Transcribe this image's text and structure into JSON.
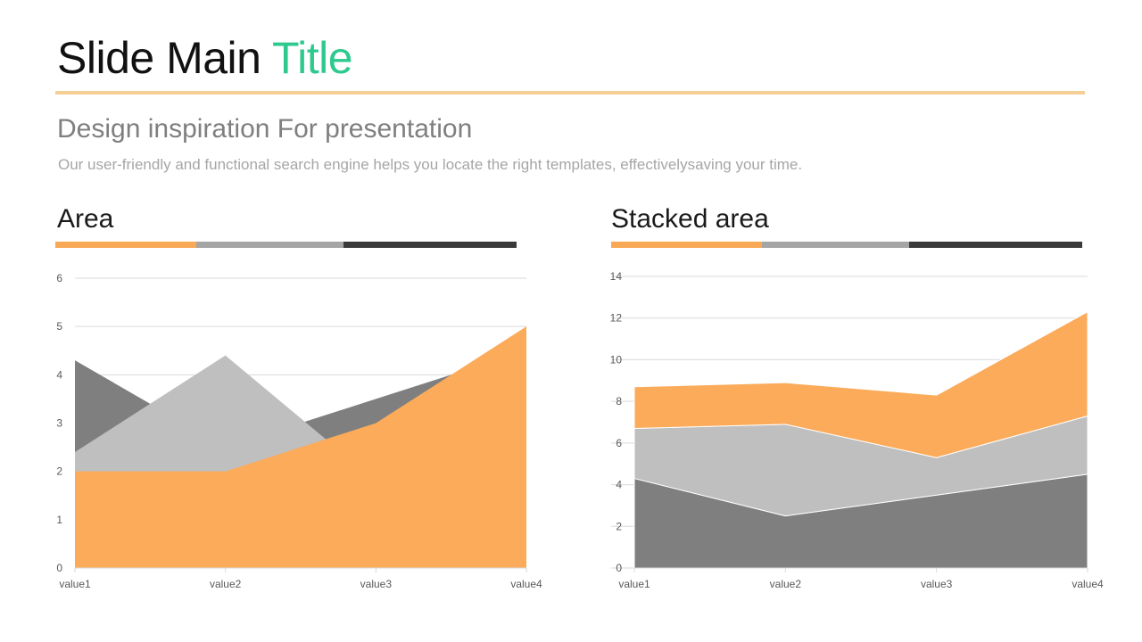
{
  "slide": {
    "title_main": "Slide Main ",
    "title_accent": "Title",
    "subtitle": "Design inspiration For presentation",
    "description": "Our user-friendly and functional search engine helps you locate the right templates, effectivelysaving your time."
  },
  "colors": {
    "accent_green": "#2ec98e",
    "orange": "#fbab5a",
    "light_gray": "#bfbfbf",
    "dark_gray": "#7f7f7f",
    "bar_orange": "#f9a955",
    "bar_gray": "#a5a5a5",
    "bar_dark": "#3a3a3a"
  },
  "chart_data": [
    {
      "type": "area",
      "title": "Area",
      "categories": [
        "value1",
        "value2",
        "value3",
        "value4"
      ],
      "ylim": [
        0,
        6
      ],
      "yticks": [
        0,
        1,
        2,
        3,
        4,
        5,
        6
      ],
      "grid": true,
      "legend": "none",
      "series": [
        {
          "values": [
            4.3,
            2.5,
            3.5,
            4.5
          ],
          "color": "#7f7f7f"
        },
        {
          "values": [
            2.4,
            4.4,
            1.8,
            2.8
          ],
          "color": "#bfbfbf"
        },
        {
          "values": [
            2.0,
            2.0,
            3.0,
            5.0
          ],
          "color": "#fbab5a"
        }
      ]
    },
    {
      "type": "stacked-area",
      "title": "Stacked area",
      "categories": [
        "value1",
        "value2",
        "value3",
        "value4"
      ],
      "ylim": [
        0,
        14
      ],
      "yticks": [
        0,
        2,
        4,
        6,
        8,
        10,
        12,
        14
      ],
      "grid": true,
      "legend": "none",
      "series": [
        {
          "values": [
            4.3,
            2.5,
            3.5,
            4.5
          ],
          "color": "#7f7f7f"
        },
        {
          "values": [
            2.4,
            4.4,
            1.8,
            2.8
          ],
          "color": "#bfbfbf"
        },
        {
          "values": [
            2.0,
            2.0,
            3.0,
            5.0
          ],
          "color": "#fbab5a"
        }
      ]
    }
  ]
}
